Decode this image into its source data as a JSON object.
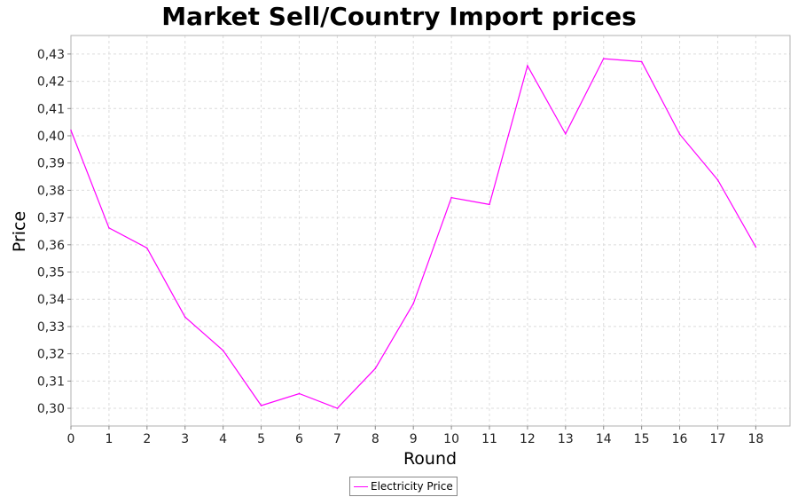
{
  "chart_data": {
    "type": "line",
    "title": "Market Sell/Country Import prices",
    "xlabel": "Round",
    "ylabel": "Price",
    "x": [
      0,
      1,
      2,
      3,
      4,
      5,
      6,
      7,
      8,
      9,
      10,
      11,
      12,
      13,
      14,
      15,
      16,
      17,
      18
    ],
    "series": [
      {
        "name": "Electricity Price",
        "color": "#ff00ff",
        "values": [
          0.402,
          0.3662,
          0.3588,
          0.3335,
          0.3212,
          0.301,
          0.3054,
          0.3,
          0.3146,
          0.3384,
          0.3773,
          0.3748,
          0.4257,
          0.4007,
          0.4283,
          0.4272,
          0.4006,
          0.3838,
          0.3592
        ]
      }
    ],
    "xlim": [
      0,
      18.9
    ],
    "ylim": [
      0.2935,
      0.4368
    ],
    "x_ticks": [
      "0",
      "1",
      "2",
      "3",
      "4",
      "5",
      "6",
      "7",
      "8",
      "9",
      "10",
      "11",
      "12",
      "13",
      "14",
      "15",
      "16",
      "17",
      "18"
    ],
    "y_ticks": [
      "0,30",
      "0,31",
      "0,32",
      "0,33",
      "0,34",
      "0,35",
      "0,36",
      "0,37",
      "0,38",
      "0,39",
      "0,40",
      "0,41",
      "0,42",
      "0,43"
    ],
    "grid": true,
    "legend_position": "bottom-center"
  }
}
